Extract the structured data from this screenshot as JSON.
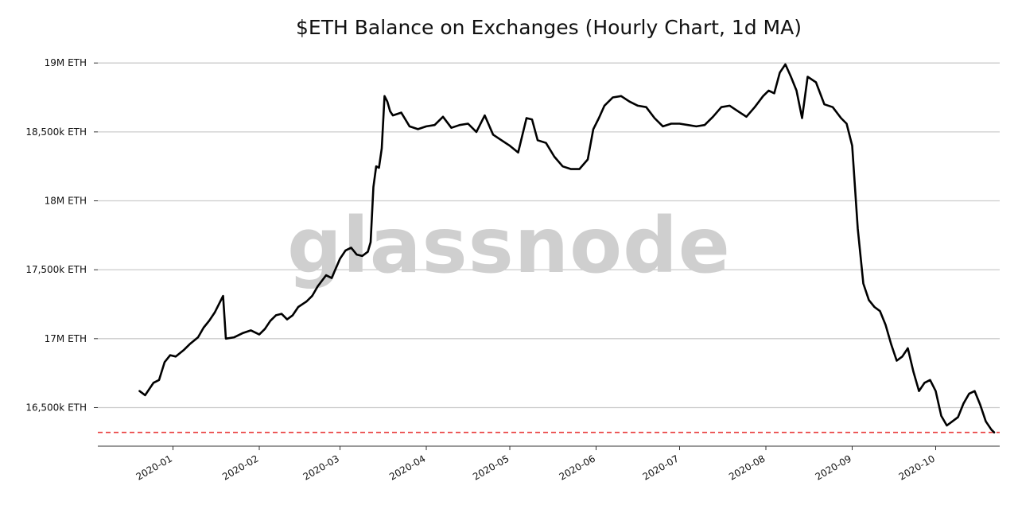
{
  "chart_data": {
    "type": "line",
    "title": "$ETH Balance on Exchanges (Hourly Chart, 1d MA)",
    "watermark": "glassnode",
    "xlabel": "",
    "ylabel": "",
    "y_ticks": [
      {
        "value": 16500000,
        "label": "16,500k ETH"
      },
      {
        "value": 17000000,
        "label": "17M ETH"
      },
      {
        "value": 17500000,
        "label": "17,500k ETH"
      },
      {
        "value": 18000000,
        "label": "18M ETH"
      },
      {
        "value": 18500000,
        "label": "18,500k ETH"
      },
      {
        "value": 19000000,
        "label": "19M ETH"
      }
    ],
    "x_ticks": [
      {
        "value": "2020-01-01",
        "label": "2020-01"
      },
      {
        "value": "2020-02-01",
        "label": "2020-02"
      },
      {
        "value": "2020-03-01",
        "label": "2020-03"
      },
      {
        "value": "2020-04-01",
        "label": "2020-04"
      },
      {
        "value": "2020-05-01",
        "label": "2020-05"
      },
      {
        "value": "2020-06-01",
        "label": "2020-06"
      },
      {
        "value": "2020-07-01",
        "label": "2020-07"
      },
      {
        "value": "2020-08-01",
        "label": "2020-08"
      },
      {
        "value": "2020-09-01",
        "label": "2020-09"
      },
      {
        "value": "2020-10-01",
        "label": "2020-10"
      }
    ],
    "xlim": [
      "2019-12-05",
      "2020-10-24"
    ],
    "ylim": [
      16220000,
      19180000
    ],
    "grid": "horizontal",
    "reference_line": {
      "value": 16320000,
      "color": "#e83a3a",
      "style": "dashed"
    },
    "colors": {
      "line": "#000000",
      "grid": "#cccccc",
      "watermark": "#cfcfcf"
    },
    "series": [
      {
        "x": [
          "2019-12-20",
          "2019-12-22",
          "2019-12-25",
          "2019-12-27",
          "2019-12-29",
          "2019-12-31",
          "2020-01-02",
          "2020-01-05",
          "2020-01-07",
          "2020-01-10",
          "2020-01-12",
          "2020-01-14",
          "2020-01-16",
          "2020-01-18",
          "2020-01-19",
          "2020-01-20",
          "2020-01-23",
          "2020-01-26",
          "2020-01-29",
          "2020-02-01",
          "2020-02-03",
          "2020-02-05",
          "2020-02-07",
          "2020-02-09",
          "2020-02-11",
          "2020-02-13",
          "2020-02-15",
          "2020-02-18",
          "2020-02-20",
          "2020-02-22",
          "2020-02-25",
          "2020-02-27",
          "2020-03-01",
          "2020-03-03",
          "2020-03-05",
          "2020-03-07",
          "2020-03-09",
          "2020-03-11",
          "2020-03-12",
          "2020-03-13",
          "2020-03-14",
          "2020-03-15",
          "2020-03-16",
          "2020-03-17",
          "2020-03-18",
          "2020-03-19",
          "2020-03-20",
          "2020-03-23",
          "2020-03-26",
          "2020-03-29",
          "2020-04-01",
          "2020-04-04",
          "2020-04-07",
          "2020-04-10",
          "2020-04-13",
          "2020-04-16",
          "2020-04-19",
          "2020-04-22",
          "2020-04-25",
          "2020-04-28",
          "2020-05-01",
          "2020-05-04",
          "2020-05-07",
          "2020-05-09",
          "2020-05-11",
          "2020-05-14",
          "2020-05-17",
          "2020-05-20",
          "2020-05-23",
          "2020-05-26",
          "2020-05-29",
          "2020-05-31",
          "2020-06-02",
          "2020-06-04",
          "2020-06-07",
          "2020-06-10",
          "2020-06-13",
          "2020-06-16",
          "2020-06-19",
          "2020-06-22",
          "2020-06-25",
          "2020-06-28",
          "2020-07-01",
          "2020-07-04",
          "2020-07-07",
          "2020-07-10",
          "2020-07-13",
          "2020-07-16",
          "2020-07-19",
          "2020-07-22",
          "2020-07-25",
          "2020-07-28",
          "2020-07-31",
          "2020-08-02",
          "2020-08-04",
          "2020-08-06",
          "2020-08-08",
          "2020-08-10",
          "2020-08-12",
          "2020-08-14",
          "2020-08-16",
          "2020-08-19",
          "2020-08-22",
          "2020-08-25",
          "2020-08-28",
          "2020-08-30",
          "2020-09-01",
          "2020-09-03",
          "2020-09-05",
          "2020-09-07",
          "2020-09-09",
          "2020-09-11",
          "2020-09-13",
          "2020-09-15",
          "2020-09-17",
          "2020-09-19",
          "2020-09-21",
          "2020-09-23",
          "2020-09-25",
          "2020-09-27",
          "2020-09-29",
          "2020-10-01",
          "2020-10-03",
          "2020-10-05",
          "2020-10-07",
          "2020-10-09",
          "2020-10-11",
          "2020-10-13",
          "2020-10-15",
          "2020-10-17",
          "2020-10-19",
          "2020-10-21",
          "2020-10-22"
        ],
        "values": [
          16620000,
          16590000,
          16680000,
          16700000,
          16830000,
          16880000,
          16870000,
          16920000,
          16960000,
          17010000,
          17080000,
          17130000,
          17190000,
          17270000,
          17310000,
          17000000,
          17010000,
          17040000,
          17060000,
          17030000,
          17070000,
          17130000,
          17170000,
          17180000,
          17140000,
          17170000,
          17230000,
          17270000,
          17310000,
          17380000,
          17460000,
          17440000,
          17580000,
          17640000,
          17660000,
          17610000,
          17600000,
          17630000,
          17700000,
          18100000,
          18250000,
          18240000,
          18380000,
          18760000,
          18720000,
          18650000,
          18620000,
          18640000,
          18540000,
          18520000,
          18540000,
          18550000,
          18610000,
          18530000,
          18550000,
          18560000,
          18500000,
          18620000,
          18480000,
          18440000,
          18400000,
          18350000,
          18600000,
          18590000,
          18440000,
          18420000,
          18320000,
          18250000,
          18230000,
          18230000,
          18300000,
          18520000,
          18600000,
          18690000,
          18750000,
          18760000,
          18720000,
          18690000,
          18680000,
          18600000,
          18540000,
          18560000,
          18560000,
          18550000,
          18540000,
          18550000,
          18610000,
          18680000,
          18690000,
          18650000,
          18610000,
          18680000,
          18760000,
          18800000,
          18780000,
          18930000,
          18990000,
          18900000,
          18800000,
          18600000,
          18900000,
          18860000,
          18700000,
          18680000,
          18600000,
          18560000,
          18400000,
          17800000,
          17400000,
          17280000,
          17230000,
          17200000,
          17100000,
          16960000,
          16840000,
          16870000,
          16930000,
          16760000,
          16620000,
          16680000,
          16700000,
          16620000,
          16440000,
          16370000,
          16400000,
          16430000,
          16530000,
          16600000,
          16620000,
          16520000,
          16400000,
          16340000,
          16320000
        ]
      }
    ]
  }
}
